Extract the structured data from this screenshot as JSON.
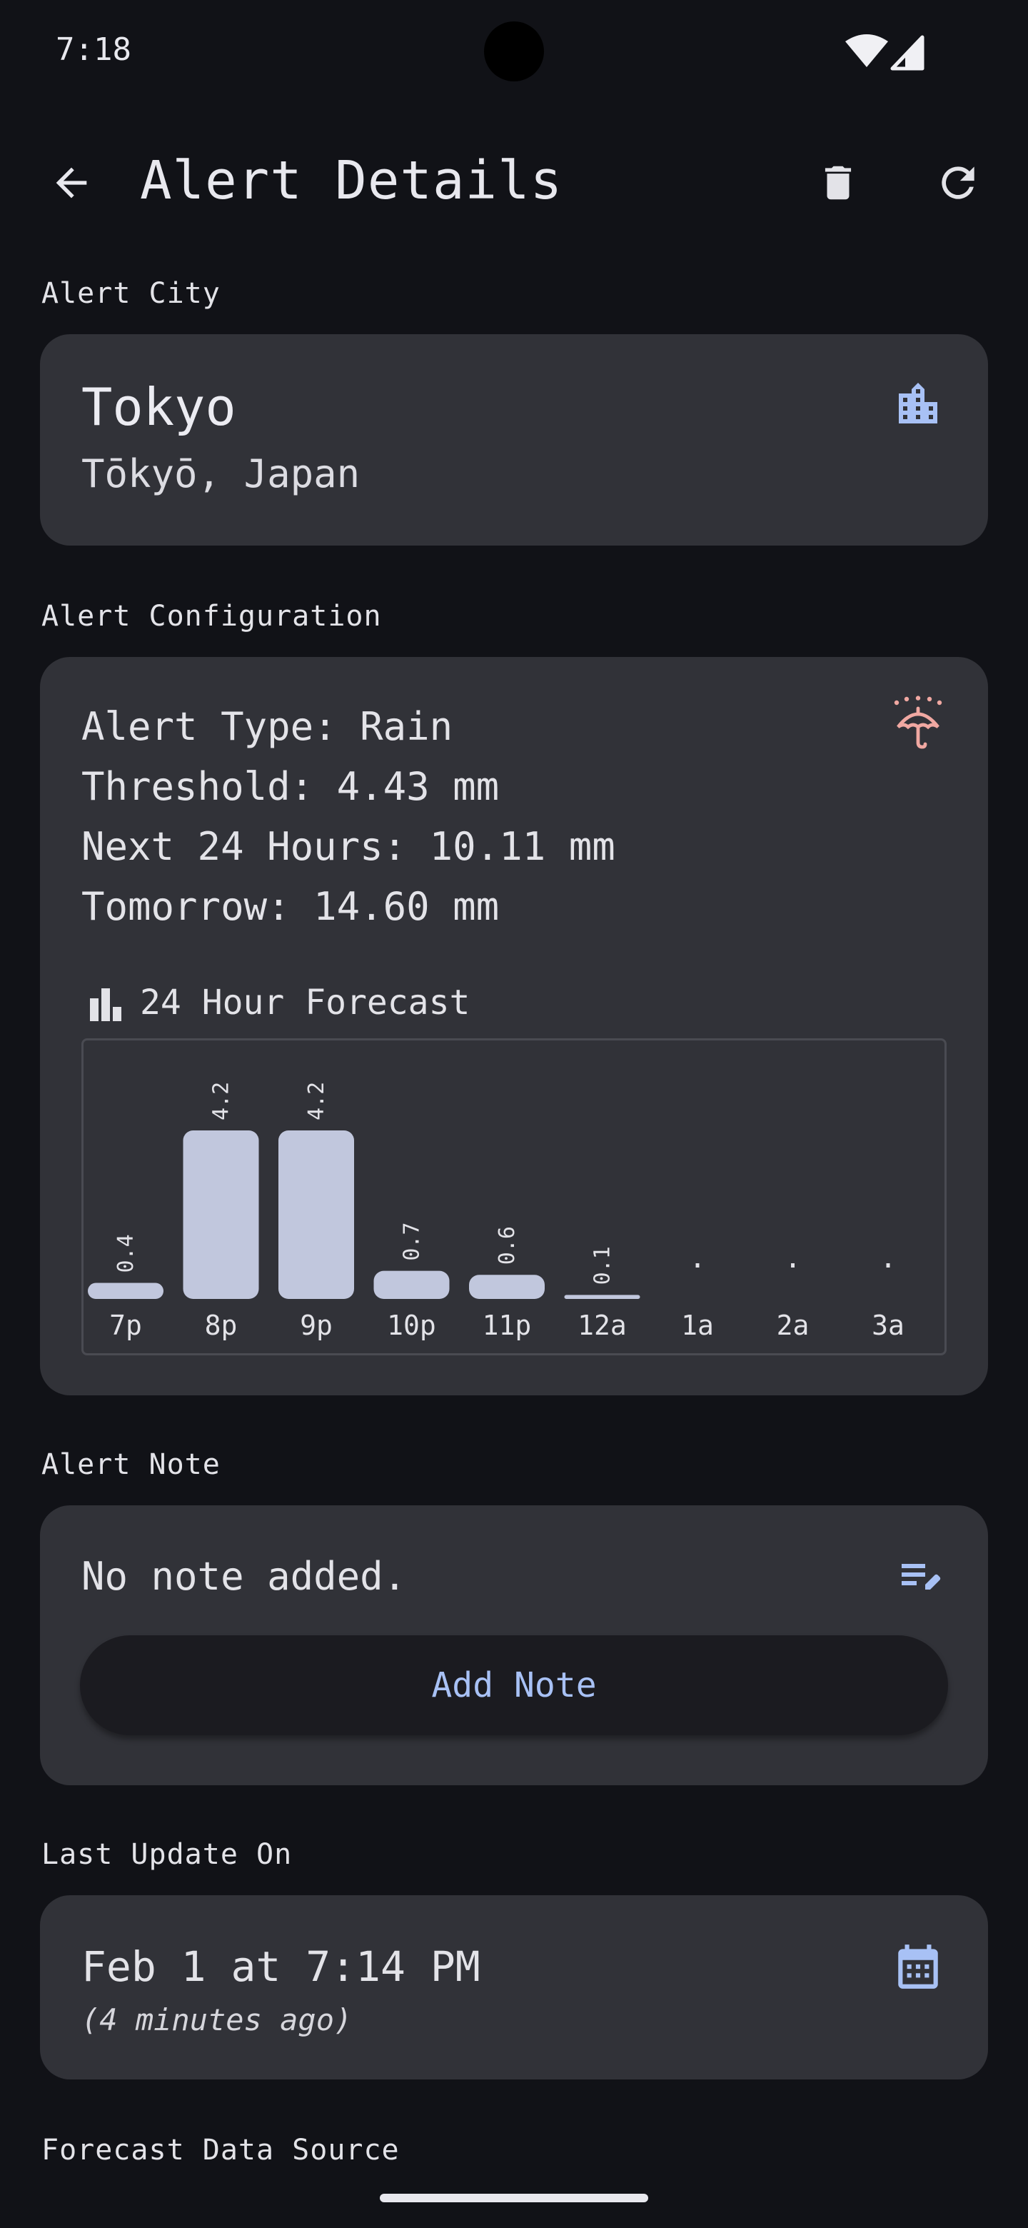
{
  "status_bar": {
    "time": "7:18"
  },
  "app_bar": {
    "title": "Alert Details"
  },
  "sections": {
    "city": "Alert City",
    "config": "Alert Configuration",
    "note": "Alert Note",
    "updated": "Last Update On",
    "source": "Forecast Data Source"
  },
  "city": {
    "name": "Tokyo",
    "region": "Tōkyō, Japan"
  },
  "config": {
    "lines": [
      "Alert Type: Rain",
      "Threshold: 4.43 mm",
      "Next 24 Hours: 10.11 mm",
      "Tomorrow: 14.60 mm"
    ]
  },
  "chart_data": {
    "type": "bar",
    "title": "24 Hour Forecast",
    "categories": [
      "7p",
      "8p",
      "9p",
      "10p",
      "11p",
      "12a",
      "1a",
      "2a",
      "3a"
    ],
    "values": [
      0.4,
      4.2,
      4.2,
      0.7,
      0.6,
      0.1,
      0,
      0,
      0
    ],
    "labels": [
      "0.4",
      "4.2",
      "4.2",
      "0.7",
      "0.6",
      "0.1",
      ".",
      ".",
      "."
    ],
    "ylim": [
      0,
      4.2
    ],
    "bar_color": "#c1c7dd"
  },
  "note": {
    "text": "No note added.",
    "button": "Add Note"
  },
  "updated": {
    "date": "Feb 1 at 7:14 PM",
    "relative": "(4 minutes ago)"
  },
  "colors": {
    "background": "#111217",
    "card": "#313238",
    "accent_blue": "#a8c1f5",
    "umbrella_pink": "#f0a8a2"
  },
  "icons": {
    "back": "arrow-left-icon",
    "delete": "trash-icon",
    "refresh": "refresh-icon",
    "city": "city-buildings-icon",
    "config": "umbrella-rain-icon",
    "chart": "bar-chart-icon",
    "note": "edit-note-icon",
    "date": "calendar-icon"
  }
}
